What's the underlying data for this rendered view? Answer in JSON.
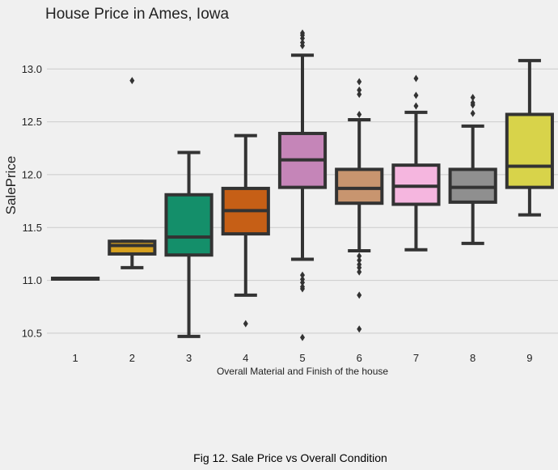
{
  "chart_data": {
    "type": "box",
    "title": "House Price in Ames, Iowa",
    "xlabel": "Overall Material and Finish of the house",
    "ylabel": "SalePrice",
    "ylim": [
      10.4,
      13.4
    ],
    "yticks": [
      "10.5",
      "11.0",
      "11.5",
      "12.0",
      "12.5",
      "13.0"
    ],
    "grid": "horizontal",
    "categories": [
      "1",
      "2",
      "3",
      "4",
      "5",
      "6",
      "7",
      "8",
      "9"
    ],
    "boxes": [
      {
        "category": "1",
        "whisker_low": 11.02,
        "q1": 11.02,
        "median": 11.02,
        "q3": 11.02,
        "whisker_high": 11.02,
        "outliers": [],
        "color": "#4878cf"
      },
      {
        "category": "2",
        "whisker_low": 11.12,
        "q1": 11.25,
        "median": 11.33,
        "q3": 11.37,
        "whisker_high": 11.37,
        "outliers": [
          12.89
        ],
        "color": "#d7a11f"
      },
      {
        "category": "3",
        "whisker_low": 10.47,
        "q1": 11.24,
        "median": 11.41,
        "q3": 11.81,
        "whisker_high": 12.21,
        "outliers": [],
        "color": "#148f6a"
      },
      {
        "category": "4",
        "whisker_low": 10.86,
        "q1": 11.44,
        "median": 11.66,
        "q3": 11.87,
        "whisker_high": 12.37,
        "outliers": [
          10.59
        ],
        "color": "#c65f16"
      },
      {
        "category": "5",
        "whisker_low": 11.2,
        "q1": 11.88,
        "median": 12.14,
        "q3": 12.39,
        "whisker_high": 13.13,
        "outliers": [
          10.46,
          10.92,
          10.94,
          10.98,
          11.01,
          11.05,
          13.22,
          13.25,
          13.29,
          13.32,
          13.34
        ],
        "color": "#c585b8"
      },
      {
        "category": "6",
        "whisker_low": 11.28,
        "q1": 11.73,
        "median": 11.87,
        "q3": 12.05,
        "whisker_high": 12.52,
        "outliers": [
          10.54,
          10.86,
          11.08,
          11.12,
          11.15,
          11.19,
          11.23,
          12.57,
          12.76,
          12.8,
          12.88
        ],
        "color": "#c8956f"
      },
      {
        "category": "7",
        "whisker_low": 11.29,
        "q1": 11.72,
        "median": 11.89,
        "q3": 12.09,
        "whisker_high": 12.59,
        "outliers": [
          12.65,
          12.75,
          12.91
        ],
        "color": "#f5b6df"
      },
      {
        "category": "8",
        "whisker_low": 11.35,
        "q1": 11.74,
        "median": 11.88,
        "q3": 12.05,
        "whisker_high": 12.46,
        "outliers": [
          12.58,
          12.66,
          12.68,
          12.73
        ],
        "color": "#8f8f8f"
      },
      {
        "category": "9",
        "whisker_low": 11.62,
        "q1": 11.88,
        "median": 12.08,
        "q3": 12.57,
        "whisker_high": 13.08,
        "outliers": [],
        "color": "#d8d34a"
      }
    ]
  },
  "caption": "Fig 12. Sale Price vs Overall Condition",
  "colors": {
    "background": "#f0f0f0",
    "grid": "#cbcbcb",
    "line": "#333333"
  }
}
